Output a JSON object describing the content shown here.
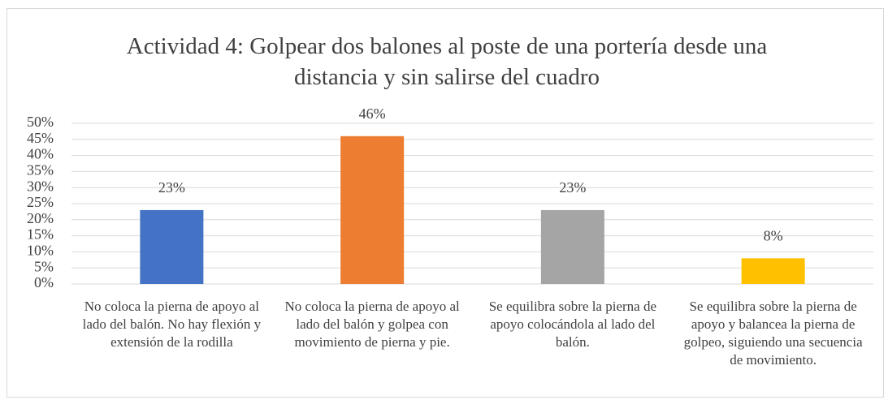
{
  "chart_data": {
    "type": "bar",
    "title": "Actividad 4: Golpear dos balones al poste de una portería desde una distancia y sin salirse del cuadro",
    "categories": [
      "No coloca la pierna de apoyo al lado del balón. No hay flexión y extensión de la rodilla",
      "No coloca la pierna de apoyo al lado del balón y golpea con movimiento de pierna y pie.",
      "Se equilibra sobre la pierna de apoyo colocándola al lado del balón.",
      "Se equilibra sobre la pierna de apoyo y balancea la pierna de golpeo, siguiendo una secuencia de movimiento."
    ],
    "values": [
      23,
      46,
      23,
      8
    ],
    "value_labels": [
      "23%",
      "46%",
      "23%",
      "8%"
    ],
    "colors": [
      "#4472c4",
      "#ed7d31",
      "#a5a5a5",
      "#ffc000"
    ],
    "ylim": [
      0,
      50
    ],
    "yticks": [
      {
        "value": 0,
        "label": "0%"
      },
      {
        "value": 5,
        "label": "5%"
      },
      {
        "value": 10,
        "label": "10%"
      },
      {
        "value": 15,
        "label": "15%"
      },
      {
        "value": 20,
        "label": "20%"
      },
      {
        "value": 25,
        "label": "25%"
      },
      {
        "value": 30,
        "label": "30%"
      },
      {
        "value": 35,
        "label": "35%"
      },
      {
        "value": 40,
        "label": "40%"
      },
      {
        "value": 45,
        "label": "45%"
      },
      {
        "value": 50,
        "label": "50%"
      }
    ],
    "grid": true
  }
}
